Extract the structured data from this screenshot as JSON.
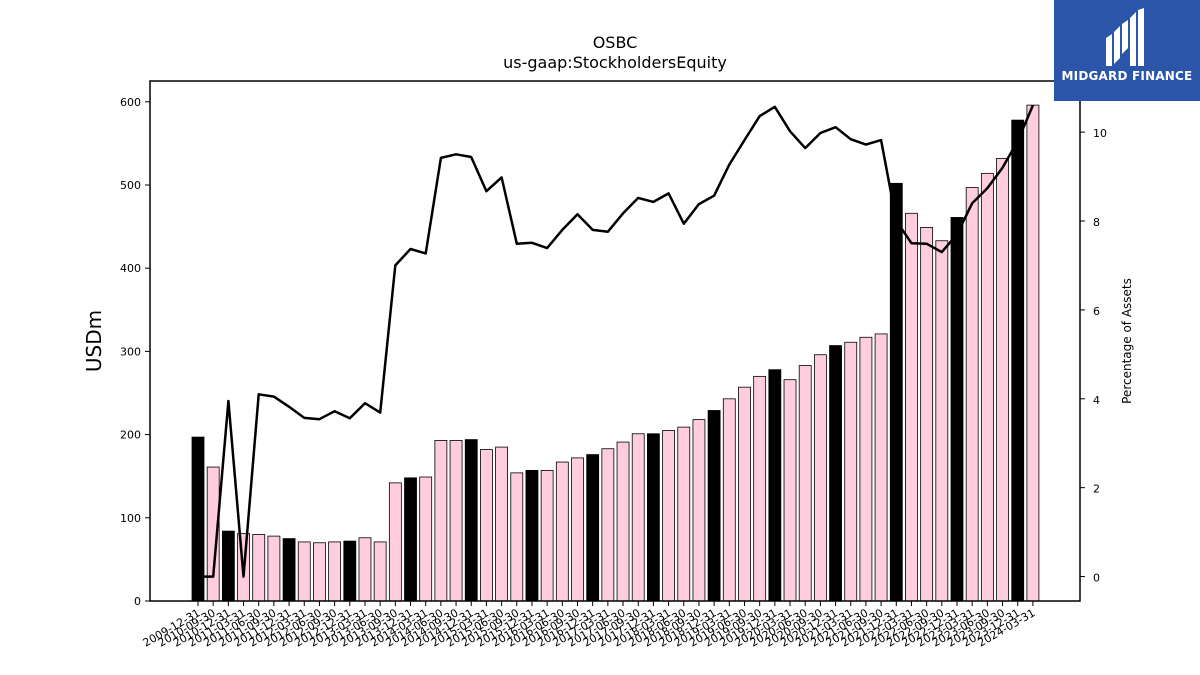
{
  "brand": {
    "name": "MIDGARD FINANCE",
    "logo_icon": "midgard-logo-icon",
    "bg_color": "#2a55a8"
  },
  "chart_data": {
    "type": "bar",
    "title": "OSBC",
    "subtitle": "us-gaap:StockholdersEquity",
    "ylabel": "USDm",
    "y2label": "Percentage of Assets",
    "ylim": [
      0,
      625
    ],
    "y2lim": [
      -0.55,
      11.15
    ],
    "yticks": [
      0,
      100,
      200,
      300,
      400,
      500,
      600
    ],
    "y2ticks": [
      0,
      2,
      4,
      6,
      8,
      10
    ],
    "colors": {
      "pink": "#ffcce0",
      "black": "#000000",
      "line": "#000000"
    },
    "categories": [
      "2009-12-31",
      "2010-09-30",
      "2010-12-31",
      "2011-03-31",
      "2011-06-30",
      "2011-09-30",
      "2011-12-31",
      "2012-03-31",
      "2012-06-30",
      "2012-09-30",
      "2012-12-31",
      "2013-03-31",
      "2013-06-30",
      "2013-09-30",
      "2013-12-31",
      "2014-03-31",
      "2014-06-30",
      "2014-09-30",
      "2014-12-31",
      "2015-03-31",
      "2015-06-30",
      "2015-09-30",
      "2015-12-31",
      "2016-03-31",
      "2016-06-30",
      "2016-09-30",
      "2016-12-31",
      "2017-03-31",
      "2017-06-30",
      "2017-09-30",
      "2017-12-31",
      "2018-03-31",
      "2018-06-30",
      "2018-09-30",
      "2018-12-31",
      "2019-03-31",
      "2019-06-30",
      "2019-09-30",
      "2019-12-31",
      "2020-03-31",
      "2020-06-30",
      "2020-09-30",
      "2020-12-31",
      "2021-03-31",
      "2021-06-30",
      "2021-09-30",
      "2021-12-31",
      "2022-03-31",
      "2022-06-30",
      "2022-09-30",
      "2022-12-31",
      "2023-03-31",
      "2023-06-30",
      "2023-09-30",
      "2023-12-31",
      "2024-03-31"
    ],
    "x_tick_labels": [
      "2009-12-31",
      "2010-09-30",
      "2010-12-31",
      "2011-03-31",
      "2011-06-30",
      "2011-09-30",
      "2011-12-31",
      "2012-03-31",
      "2012-06-30",
      "2012-09-30",
      "2012-12-31",
      "2013-03-31",
      "2013-06-30",
      "2013-09-30",
      "2013-12-31",
      "2014-03-31",
      "2014-06-30",
      "2014-09-30",
      "2014-12-31",
      "2015-03-31",
      "2015-06-30",
      "2015-09-30",
      "2015-12-31",
      "2016-03-31",
      "2016-06-30",
      "2016-09-30",
      "2016-12-31",
      "2017-03-31",
      "2017-06-30",
      "2017-09-30",
      "2017-12-31",
      "2018-03-31",
      "2018-06-30",
      "2018-09-30",
      "2018-12-31",
      "2019-03-31",
      "2019-06-30",
      "2019-09-30",
      "2019-12-31",
      "2020-03-31",
      "2020-06-30",
      "2020-09-30",
      "2020-12-31",
      "2021-03-31",
      "2021-06-30",
      "2021-09-30",
      "2021-12-31",
      "2022-03-31",
      "2022-06-30",
      "2022-09-30",
      "2022-12-31",
      "2023-03-31",
      "2023-06-30",
      "2023-09-30",
      "2023-12-31",
      "2024-03-31"
    ],
    "series": [
      {
        "values": [
          197,
          161,
          84,
          81,
          80,
          78,
          75,
          71,
          70,
          71,
          72,
          76,
          71,
          142,
          148,
          149,
          193,
          193,
          194,
          182,
          185,
          154,
          157,
          157,
          167,
          172,
          176,
          183,
          191,
          201,
          201,
          205,
          209,
          218,
          229,
          243,
          257,
          270,
          278,
          266,
          283,
          296,
          307,
          311,
          317,
          321,
          502,
          466,
          449,
          433,
          461,
          497,
          514,
          532,
          578,
          596
        ],
        "bar_colors": [
          "black",
          "pink",
          "black",
          "pink",
          "pink",
          "pink",
          "black",
          "pink",
          "pink",
          "pink",
          "black",
          "pink",
          "pink",
          "pink",
          "black",
          "pink",
          "pink",
          "pink",
          "black",
          "pink",
          "pink",
          "pink",
          "black",
          "pink",
          "pink",
          "pink",
          "black",
          "pink",
          "pink",
          "pink",
          "black",
          "pink",
          "pink",
          "pink",
          "black",
          "pink",
          "pink",
          "pink",
          "black",
          "pink",
          "pink",
          "pink",
          "black",
          "pink",
          "pink",
          "pink",
          "black",
          "pink",
          "pink",
          "pink",
          "black",
          "pink",
          "pink",
          "pink",
          "black",
          "pink"
        ]
      },
      {
        "axis": "right",
        "type": "line",
        "values": [
          0.0,
          0.0,
          3.95,
          0.0,
          4.1,
          4.05,
          3.82,
          3.57,
          3.54,
          3.72,
          3.56,
          3.9,
          3.69,
          7.0,
          7.37,
          7.27,
          9.42,
          9.5,
          9.44,
          8.67,
          8.98,
          7.49,
          7.51,
          7.39,
          7.8,
          8.15,
          7.8,
          7.76,
          8.17,
          8.52,
          8.43,
          8.62,
          7.94,
          8.38,
          8.57,
          9.27,
          9.82,
          10.36,
          10.57,
          10.02,
          9.64,
          9.98,
          10.11,
          9.84,
          9.72,
          9.82,
          8.0,
          7.5,
          7.49,
          7.3,
          7.7,
          8.4,
          8.74,
          9.2,
          9.8,
          10.6
        ]
      }
    ]
  }
}
